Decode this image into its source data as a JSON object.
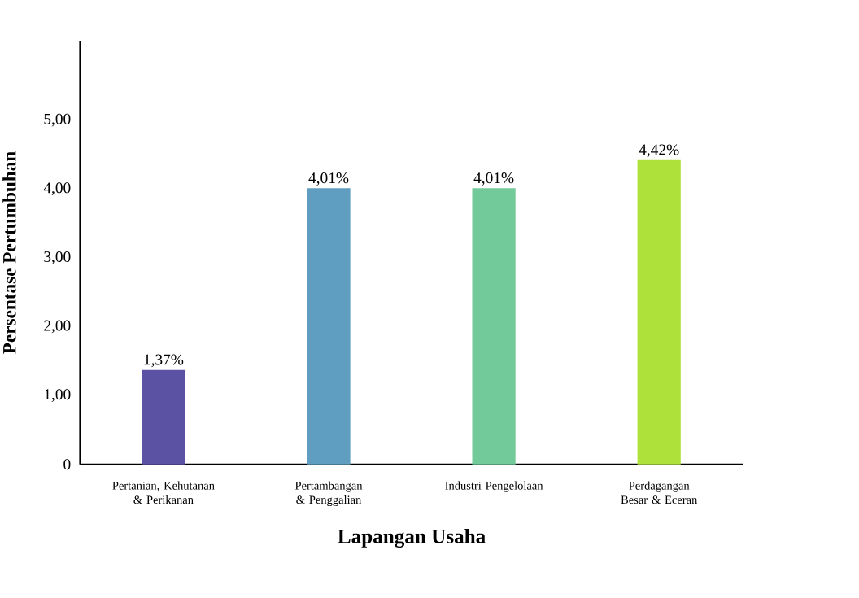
{
  "chart_data": {
    "type": "bar",
    "categories": [
      "Pertanian, Kehutanan & Perikanan",
      "Pertambangan & Penggalian",
      "Industri Pengelolaan",
      "Perdagangan Besar & Eceran"
    ],
    "values": [
      1.37,
      4.01,
      4.01,
      4.42
    ],
    "colors": [
      "#5b52a3",
      "#5f9ec0",
      "#72c99a",
      "#aee23a"
    ],
    "value_labels": [
      "1,37%",
      "4,01%",
      "4,01%",
      "4,42%"
    ],
    "xlabel": "Lapangan Usaha",
    "ylabel": "Persentase Pertumbuhan",
    "ylim": [
      0,
      6.15
    ],
    "yticks": [
      0,
      {
        "value": 1,
        "label": "1,00"
      },
      {
        "value": 2,
        "label": "2,00"
      },
      {
        "value": 3,
        "label": "3,00"
      },
      {
        "value": 4,
        "label": "4,00"
      },
      {
        "value": 5,
        "label": "5,00"
      }
    ]
  }
}
